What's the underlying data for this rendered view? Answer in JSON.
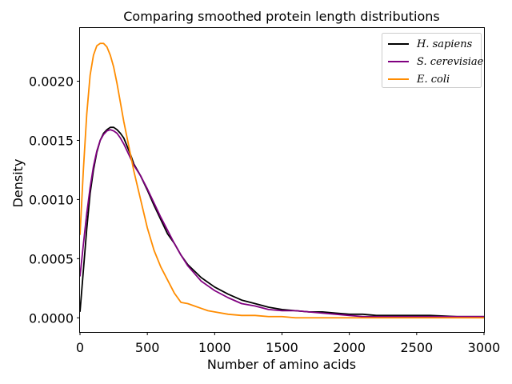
{
  "chart_data": {
    "type": "line",
    "title": "Comparing smoothed protein length distributions",
    "xlabel": "Number of amino acids",
    "ylabel": "Density",
    "xlim": [
      0,
      3000
    ],
    "ylim": [
      -0.00012,
      0.00245
    ],
    "xticks": [
      0,
      500,
      1000,
      1500,
      2000,
      2500,
      3000
    ],
    "xtick_labels": [
      "0",
      "500",
      "1000",
      "1500",
      "2000",
      "2500",
      "3000"
    ],
    "yticks": [
      0,
      0.0005,
      0.001,
      0.0015,
      0.002
    ],
    "ytick_labels": [
      "0.0000",
      "0.0005",
      "0.0010",
      "0.0015",
      "0.0020"
    ],
    "grid": false,
    "legend_position": "top-right",
    "series": [
      {
        "name": "H. sapiens",
        "color": "#000000",
        "x": [
          0,
          25,
          50,
          75,
          100,
          125,
          150,
          175,
          200,
          225,
          250,
          275,
          300,
          325,
          350,
          375,
          400,
          450,
          500,
          550,
          600,
          650,
          700,
          750,
          800,
          900,
          1000,
          1100,
          1200,
          1300,
          1400,
          1500,
          1600,
          1700,
          1800,
          1900,
          2000,
          2100,
          2200,
          2400,
          2600,
          2800,
          3000
        ],
        "values": [
          5e-05,
          0.0004,
          0.00075,
          0.00105,
          0.00125,
          0.0014,
          0.0015,
          0.00156,
          0.00159,
          0.00161,
          0.00161,
          0.00159,
          0.00156,
          0.00152,
          0.00145,
          0.00138,
          0.0013,
          0.0012,
          0.00108,
          0.00095,
          0.00083,
          0.00071,
          0.00063,
          0.00053,
          0.00045,
          0.00034,
          0.00026,
          0.0002,
          0.00015,
          0.00012,
          9e-05,
          7e-05,
          6e-05,
          5e-05,
          5e-05,
          4e-05,
          3e-05,
          3e-05,
          2e-05,
          2e-05,
          2e-05,
          1e-05,
          1e-05
        ]
      },
      {
        "name": "S. cerevisiae",
        "color": "#800080",
        "x": [
          0,
          25,
          50,
          75,
          100,
          125,
          150,
          175,
          200,
          225,
          250,
          275,
          300,
          325,
          350,
          375,
          400,
          450,
          500,
          550,
          600,
          650,
          700,
          750,
          800,
          900,
          1000,
          1100,
          1200,
          1300,
          1400,
          1500,
          1600,
          1700,
          1800,
          1900,
          2000,
          2100,
          2200,
          2400,
          2600,
          2800,
          3000
        ],
        "values": [
          0.00035,
          0.00062,
          0.00088,
          0.0011,
          0.00128,
          0.00141,
          0.0015,
          0.00155,
          0.00158,
          0.00159,
          0.00158,
          0.00156,
          0.00152,
          0.00147,
          0.00141,
          0.00135,
          0.00129,
          0.0012,
          0.00109,
          0.00097,
          0.00085,
          0.00074,
          0.00063,
          0.00053,
          0.00044,
          0.00031,
          0.00023,
          0.00017,
          0.00012,
          0.0001,
          7e-05,
          6e-05,
          6e-05,
          5e-05,
          4e-05,
          3e-05,
          2e-05,
          1e-05,
          1e-05,
          1e-05,
          1e-05,
          1e-05,
          1e-05
        ]
      },
      {
        "name": "E. coli",
        "color": "#ff8c00",
        "x": [
          0,
          25,
          50,
          75,
          100,
          125,
          150,
          175,
          200,
          225,
          250,
          275,
          300,
          325,
          350,
          375,
          400,
          450,
          500,
          550,
          600,
          650,
          700,
          750,
          800,
          850,
          900,
          950,
          1000,
          1100,
          1200,
          1300,
          1400,
          1500,
          1600,
          1800,
          2000,
          2200,
          2400,
          2600,
          2800,
          3000
        ],
        "values": [
          0.0007,
          0.00125,
          0.00172,
          0.00205,
          0.00222,
          0.0023,
          0.00232,
          0.00232,
          0.00229,
          0.00222,
          0.00212,
          0.00198,
          0.00182,
          0.00166,
          0.00152,
          0.00138,
          0.00124,
          0.001,
          0.00076,
          0.00057,
          0.00043,
          0.00032,
          0.00021,
          0.00013,
          0.00012,
          0.0001,
          8e-05,
          6e-05,
          5e-05,
          3e-05,
          2e-05,
          2e-05,
          1e-05,
          1e-05,
          0.0,
          0.0,
          0.0,
          0.0,
          0.0,
          0.0,
          0.0,
          0.0
        ]
      }
    ]
  }
}
